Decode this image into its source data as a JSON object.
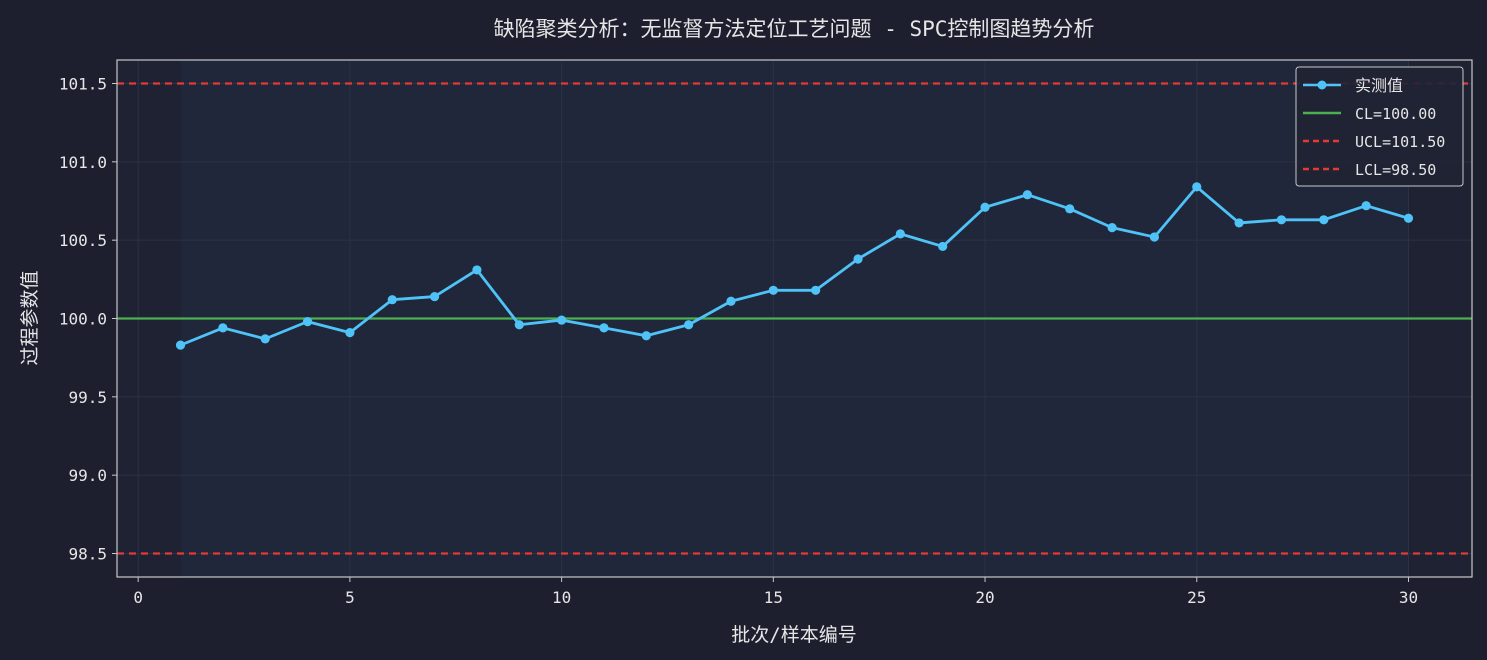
{
  "chart_data": {
    "type": "line",
    "title": "缺陷聚类分析：无监督方法定位工艺问题 - SPC控制图趋势分析",
    "xlabel": "批次/样本编号",
    "ylabel": "过程参数值",
    "xlim": [
      -0.5,
      31.5
    ],
    "ylim": [
      98.35,
      101.65
    ],
    "xticks": [
      0,
      5,
      10,
      15,
      20,
      25,
      30
    ],
    "xtick_labels": [
      "0",
      "5",
      "10",
      "15",
      "20",
      "25",
      "30"
    ],
    "yticks": [
      98.5,
      99.0,
      99.5,
      100.0,
      100.5,
      101.0,
      101.5
    ],
    "ytick_labels": [
      "98.5",
      "99.0",
      "99.5",
      "100.0",
      "100.5",
      "101.0",
      "101.5"
    ],
    "grid": true,
    "legend_position": "top-right",
    "shaded_x_range": [
      1,
      30
    ],
    "series": [
      {
        "name": "实测值",
        "x": [
          1,
          2,
          3,
          4,
          5,
          6,
          7,
          8,
          9,
          10,
          11,
          12,
          13,
          14,
          15,
          16,
          17,
          18,
          19,
          20,
          21,
          22,
          23,
          24,
          25,
          26,
          27,
          28,
          29,
          30
        ],
        "values": [
          99.83,
          99.94,
          99.87,
          99.98,
          99.91,
          100.12,
          100.14,
          100.31,
          99.96,
          99.99,
          99.94,
          99.89,
          99.96,
          100.11,
          100.18,
          100.18,
          100.38,
          100.54,
          100.46,
          100.71,
          100.79,
          100.7,
          100.58,
          100.52,
          100.84,
          100.61,
          100.63,
          100.63,
          100.72,
          100.64
        ]
      }
    ],
    "reference_lines": [
      {
        "name": "CL=100.00",
        "value": 100.0,
        "style": "solid"
      },
      {
        "name": "UCL=101.50",
        "value": 101.5,
        "style": "dashed"
      },
      {
        "name": "LCL=98.50",
        "value": 98.5,
        "style": "dashed"
      }
    ],
    "colors": {
      "background": "#1d1f2e",
      "plot_background": "#1e2233",
      "shaded_band": "#20273a",
      "series": "#4fc3f7",
      "cl": "#4caf50",
      "limits": "#e53935",
      "text": "#e6e6e6",
      "axis": "#c8c8c8",
      "grid": "#2c3145"
    }
  }
}
